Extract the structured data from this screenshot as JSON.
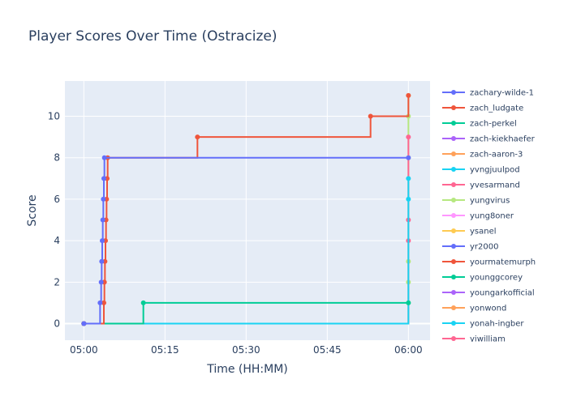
{
  "chart_data": {
    "type": "line",
    "line_shape": "step",
    "title": "Player Scores Over Time (Ostracize)",
    "xlabel": "Time (HH:MM)",
    "ylabel": "Score",
    "x_tick_labels": [
      "05:00",
      "05:15",
      "05:30",
      "05:45",
      "06:00"
    ],
    "x_tick_minutes": [
      0,
      15,
      30,
      45,
      60
    ],
    "xlim_minutes": [
      -3.5,
      64
    ],
    "y_ticks": [
      0,
      2,
      4,
      6,
      8,
      10
    ],
    "ylim": [
      -0.8,
      11.7
    ],
    "grid": true,
    "plot_background": "#e5ecf6",
    "legend_position": "right",
    "series": [
      {
        "name": "zachary-wilde-1",
        "color": "#636efa",
        "points": [
          [
            0,
            0
          ],
          [
            3,
            1
          ],
          [
            3.2,
            2
          ],
          [
            3.3,
            3
          ],
          [
            3.4,
            4
          ],
          [
            3.5,
            5
          ],
          [
            3.6,
            6
          ],
          [
            3.7,
            7
          ],
          [
            3.8,
            8
          ],
          [
            60,
            8
          ]
        ]
      },
      {
        "name": "zach_ludgate",
        "color": "#EF553B",
        "points": [
          [
            0,
            0
          ],
          [
            3.7,
            1
          ],
          [
            3.8,
            2
          ],
          [
            3.9,
            3
          ],
          [
            4.0,
            4
          ],
          [
            4.1,
            5
          ],
          [
            4.2,
            6
          ],
          [
            4.3,
            7
          ],
          [
            4.4,
            8
          ],
          [
            21,
            9
          ],
          [
            53,
            10
          ],
          [
            60,
            11
          ]
        ]
      },
      {
        "name": "zach-perkel",
        "color": "#00cc96",
        "points": [
          [
            0,
            0
          ],
          [
            11,
            1
          ],
          [
            60,
            1
          ]
        ]
      },
      {
        "name": "zach-kiekhaefer",
        "color": "#ab63fa",
        "points": [
          [
            0,
            0
          ]
        ]
      },
      {
        "name": "zach-aaron-3",
        "color": "#FFA15A",
        "points": [
          [
            0,
            0
          ]
        ]
      },
      {
        "name": "yvngjuulpod",
        "color": "#19d3f3",
        "points": [
          [
            0,
            0
          ],
          [
            60,
            6
          ],
          [
            60,
            7
          ]
        ]
      },
      {
        "name": "yvesarmand",
        "color": "#FF6692",
        "points": [
          [
            0,
            0
          ],
          [
            60,
            4
          ],
          [
            60,
            5
          ],
          [
            60,
            9
          ]
        ]
      },
      {
        "name": "yungvirus",
        "color": "#B6E880",
        "points": [
          [
            0,
            0
          ],
          [
            60,
            1
          ],
          [
            60,
            2
          ],
          [
            60,
            3
          ],
          [
            60,
            8
          ],
          [
            60,
            10
          ],
          [
            60,
            11
          ]
        ]
      },
      {
        "name": "yung8oner",
        "color": "#FF97FF",
        "points": [
          [
            0,
            0
          ]
        ]
      },
      {
        "name": "ysanel",
        "color": "#FECB52",
        "points": [
          [
            0,
            0
          ]
        ]
      },
      {
        "name": "yr2000",
        "color": "#636efa",
        "points": [
          [
            0,
            0
          ]
        ]
      },
      {
        "name": "yourmatemurph",
        "color": "#EF553B",
        "points": [
          [
            0,
            0
          ]
        ]
      },
      {
        "name": "younggcorey",
        "color": "#00cc96",
        "points": [
          [
            0,
            0
          ]
        ]
      },
      {
        "name": "youngarkofficial",
        "color": "#ab63fa",
        "points": [
          [
            0,
            0
          ]
        ]
      },
      {
        "name": "yonwond",
        "color": "#FFA15A",
        "points": [
          [
            0,
            0
          ]
        ]
      },
      {
        "name": "yonah-ingber",
        "color": "#19d3f3",
        "points": [
          [
            0,
            0
          ]
        ]
      },
      {
        "name": "yiwilliam",
        "color": "#FF6692",
        "points": [
          [
            0,
            0
          ]
        ]
      }
    ]
  }
}
